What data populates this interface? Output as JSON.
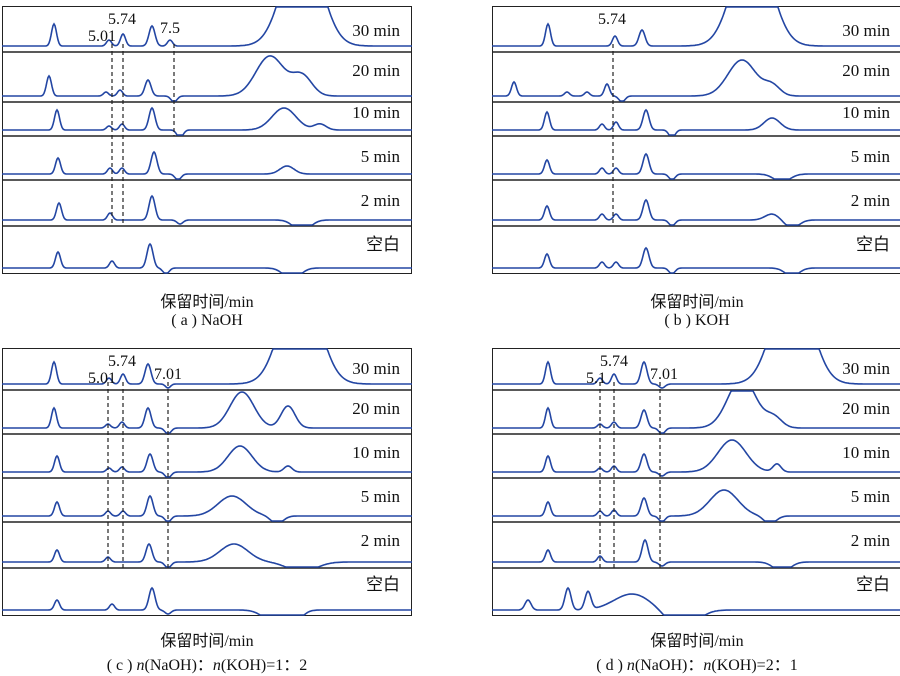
{
  "colors": {
    "trace": "#2346a3",
    "frame": "#222222",
    "guide": "#222222"
  },
  "charts": [
    {
      "id": "a",
      "caption": "( a ) NaOH",
      "xlabel": "保留时间/min",
      "strips": [
        "30 min",
        "20 min",
        "10 min",
        "5 min",
        "2 min",
        "空白"
      ],
      "markers": [
        "5.01",
        "5.74",
        "7.5"
      ]
    },
    {
      "id": "b",
      "caption": "( b ) KOH",
      "xlabel": "保留时间/min",
      "strips": [
        "30 min",
        "20 min",
        "10 min",
        "5 min",
        "2 min",
        "空白"
      ],
      "markers": [
        "5.74"
      ]
    },
    {
      "id": "c",
      "caption_prefix": "( c ) ",
      "caption_n1": "n",
      "caption_mid1": "(NaOH)：",
      "caption_n2": "n",
      "caption_mid2": "(KOH)=1：2",
      "xlabel": "保留时间/min",
      "strips": [
        "30 min",
        "20 min",
        "10 min",
        "5 min",
        "2 min",
        "空白"
      ],
      "markers": [
        "5.01",
        "5.74",
        "7.01"
      ]
    },
    {
      "id": "d",
      "caption_prefix": "( d ) ",
      "caption_n1": "n",
      "caption_mid1": "(NaOH)：",
      "caption_n2": "n",
      "caption_mid2": "(KOH)=2：1",
      "xlabel": "保留时间/min",
      "strips": [
        "30 min",
        "20 min",
        "10 min",
        "5 min",
        "2 min",
        "空白"
      ],
      "markers": [
        "5.1",
        "5.74",
        "7.01"
      ]
    }
  ],
  "chart_data": [
    {
      "type": "line",
      "title": "( a ) NaOH",
      "xlabel": "保留时间/min",
      "series": [
        {
          "name": "30 min",
          "peaks_at_min": [
            "5.01",
            "5.74",
            "7.5"
          ]
        },
        {
          "name": "20 min"
        },
        {
          "name": "10 min"
        },
        {
          "name": "5 min"
        },
        {
          "name": "2 min"
        },
        {
          "name": "空白"
        }
      ]
    },
    {
      "type": "line",
      "title": "( b ) KOH",
      "xlabel": "保留时间/min",
      "series": [
        {
          "name": "30 min",
          "peaks_at_min": [
            "5.74"
          ]
        },
        {
          "name": "20 min"
        },
        {
          "name": "10 min"
        },
        {
          "name": "5 min"
        },
        {
          "name": "2 min"
        },
        {
          "name": "空白"
        }
      ]
    },
    {
      "type": "line",
      "title": "( c ) n(NaOH)：n(KOH)=1：2",
      "xlabel": "保留时间/min",
      "series": [
        {
          "name": "30 min",
          "peaks_at_min": [
            "5.01",
            "5.74",
            "7.01"
          ]
        },
        {
          "name": "20 min"
        },
        {
          "name": "10 min"
        },
        {
          "name": "5 min"
        },
        {
          "name": "2 min"
        },
        {
          "name": "空白"
        }
      ]
    },
    {
      "type": "line",
      "title": "( d ) n(NaOH)：n(KOH)=2：1",
      "xlabel": "保留时间/min",
      "series": [
        {
          "name": "30 min",
          "peaks_at_min": [
            "5.1",
            "5.74",
            "7.01"
          ]
        },
        {
          "name": "20 min"
        },
        {
          "name": "10 min"
        },
        {
          "name": "5 min"
        },
        {
          "name": "2 min"
        },
        {
          "name": "空白"
        }
      ]
    }
  ]
}
